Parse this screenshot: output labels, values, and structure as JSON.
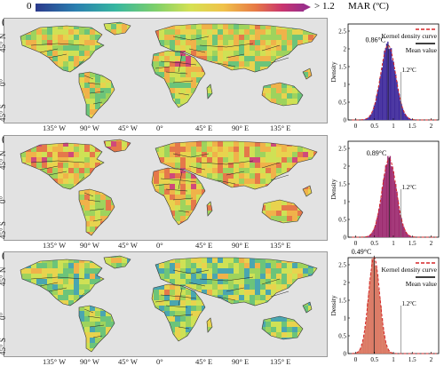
{
  "colorbar": {
    "min_label": "0",
    "max_label": "> 1.2",
    "title": "MAR (ºC)"
  },
  "panels": [
    {
      "label": "(a)",
      "mean_label": "0.86°C",
      "mean": 0.86,
      "ref_label": "1.2°C",
      "ref": 1.2,
      "bar_color": "#3f2a99",
      "edge_color": "#5d4ab5",
      "show_legend": true,
      "peak": 2.1,
      "sd": 0.2
    },
    {
      "label": "(b)",
      "mean_label": "0.89°C",
      "mean": 0.89,
      "ref_label": "1.2°C",
      "ref": 1.2,
      "bar_color": "#9a2c6e",
      "edge_color": "#b8498d",
      "show_legend": false,
      "peak": 2.2,
      "sd": 0.19
    },
    {
      "label": "(c)",
      "mean_label": "0.49°C",
      "mean": 0.49,
      "ref_label": "1.2°C",
      "ref": 1.2,
      "bar_color": "#e0806a",
      "edge_color": "#c86350",
      "show_legend": true,
      "peak": 2.7,
      "sd": 0.15
    }
  ],
  "map_axes": {
    "lat_labels": [
      "45° N",
      "0°",
      "45° S"
    ],
    "lon_labels": [
      "135° W",
      "90° W",
      "45° W",
      "0°",
      "45° E",
      "90° E",
      "135° E"
    ]
  },
  "legend": {
    "kde": "Kernel density curve",
    "mean": "Mean value"
  },
  "chart_data": {
    "type": "bar",
    "title": "",
    "xlabel": "",
    "ylabel": "Density",
    "xlim": [
      -0.2,
      2.2
    ],
    "ylim": [
      0,
      2.7
    ],
    "xticks": [
      "0",
      "0.5",
      "1",
      "1.5",
      "2"
    ],
    "yticks": [
      "0",
      "0.5",
      "1",
      "1.5",
      "2",
      "2.5"
    ],
    "series": [
      {
        "name": "(a)",
        "mean": 0.86
      },
      {
        "name": "(b)",
        "mean": 0.89
      },
      {
        "name": "(c)",
        "mean": 0.49
      }
    ]
  }
}
